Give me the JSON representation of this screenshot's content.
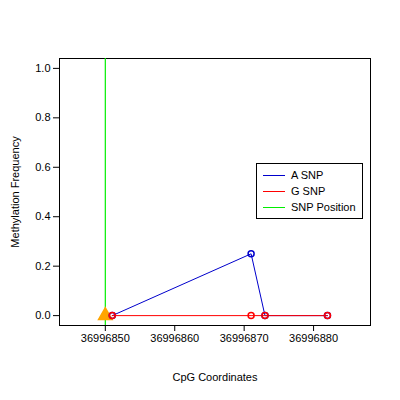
{
  "chart_data": {
    "type": "line",
    "x_label": "CpG Coordinates",
    "y_label": "Methylation Frequency",
    "xlim": [
      36996843.4,
      36996888.2
    ],
    "xticks": [
      36996850,
      36996860,
      36996870,
      36996880
    ],
    "ylim": [
      -0.04,
      1.04
    ],
    "yticks": [
      {
        "value": 0,
        "label": "0.0"
      },
      {
        "value": 0.2,
        "label": "0.2"
      },
      {
        "value": 0.4,
        "label": "0.4"
      },
      {
        "value": 0.6,
        "label": "0.6"
      },
      {
        "value": 0.8,
        "label": "0.8"
      },
      {
        "value": 1,
        "label": "1.0"
      }
    ],
    "legend": "right",
    "series": [
      {
        "name": "A SNP",
        "color": "#0000cc",
        "type": "line",
        "marker": "circle",
        "x": [
          36996851,
          36996871,
          36996873,
          36996882
        ],
        "values": [
          0,
          0.25,
          0,
          0
        ]
      },
      {
        "name": "G SNP",
        "color": "#ff0000",
        "type": "line",
        "marker": "circle",
        "x": [
          36996851,
          36996871,
          36996873,
          36996882
        ],
        "values": [
          0,
          0,
          0,
          0
        ]
      },
      {
        "name": "SNP Position",
        "color": "#00ee00",
        "type": "vline",
        "marker": "triangle",
        "x": [
          36996850
        ],
        "values": [
          0
        ]
      }
    ]
  }
}
